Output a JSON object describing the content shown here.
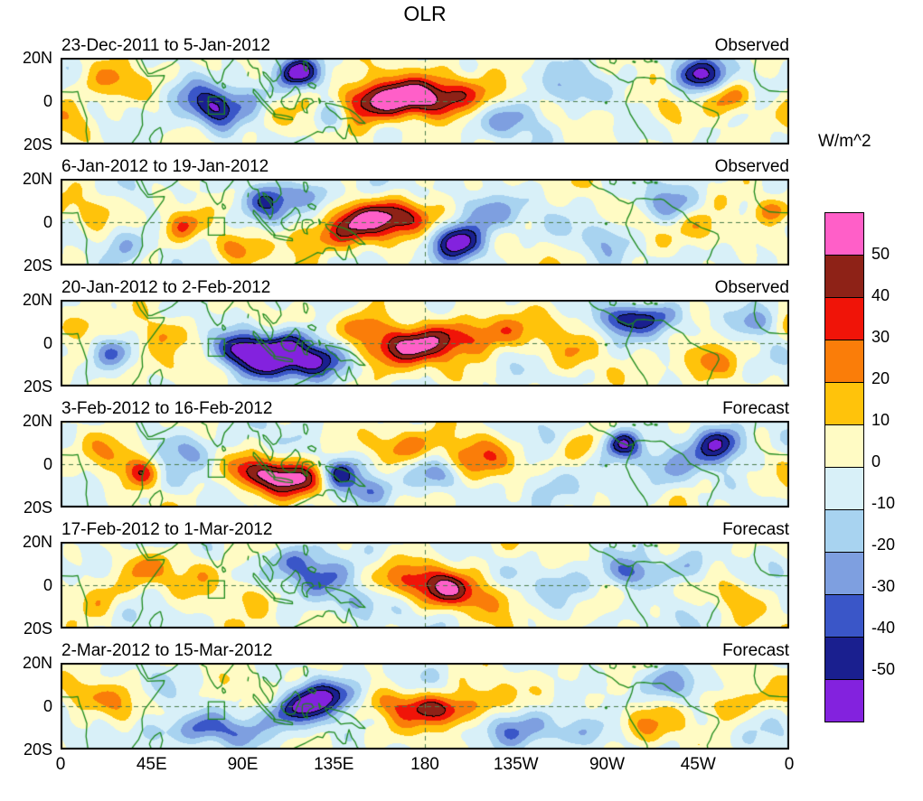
{
  "title": "OLR",
  "colorbar": {
    "units_label": "W/m^2",
    "tick_labels": [
      "50",
      "40",
      "30",
      "20",
      "10",
      "0",
      "-10",
      "-20",
      "-30",
      "-40",
      "-50"
    ],
    "levels": [
      -50,
      -40,
      -30,
      -20,
      -10,
      0,
      10,
      20,
      30,
      40,
      50
    ],
    "colors_top_to_bottom": [
      "#FF5FC8",
      "#8E2217",
      "#F01408",
      "#FA7D09",
      "#FFC30B",
      "#FFFBC4",
      "#D8F0F8",
      "#A8D3F0",
      "#7E9FE0",
      "#3A56C8",
      "#1A1F8F",
      "#8322DE"
    ]
  },
  "axes": {
    "x_tick_labels": [
      "0",
      "45E",
      "90E",
      "135E",
      "180",
      "135W",
      "90W",
      "45W",
      "0"
    ],
    "y_tick_labels": [
      "20N",
      "0",
      "20S"
    ],
    "lon_range": [
      0,
      360
    ],
    "lat_range": [
      -20,
      20
    ]
  },
  "chart_data": {
    "type": "filled_contour_map",
    "variable": "OLR anomaly",
    "units": "W/m^2",
    "contour_interval": 10,
    "panels": [
      {
        "label": "23-Dec-2011 to 5-Jan-2012",
        "tag": "Observed",
        "anomaly_centers": [
          {
            "lon": 172,
            "lat": 1,
            "value": 48,
            "rlon": 18,
            "rlat": 6
          },
          {
            "lon": 150,
            "lat": -3,
            "value": 30,
            "rlon": 14,
            "rlat": 7
          },
          {
            "lon": 200,
            "lat": 3,
            "value": 25,
            "rlon": 18,
            "rlat": 7
          },
          {
            "lon": 117,
            "lat": 13,
            "value": -52,
            "rlon": 7,
            "rlat": 5
          },
          {
            "lon": 78,
            "lat": -4,
            "value": -48,
            "rlon": 8,
            "rlat": 6
          },
          {
            "lon": 64,
            "lat": 4,
            "value": -25,
            "rlon": 8,
            "rlat": 6
          },
          {
            "lon": 133,
            "lat": -6,
            "value": -35,
            "rlon": 6,
            "rlat": 5
          },
          {
            "lon": 315,
            "lat": 12,
            "value": -55,
            "rlon": 10,
            "rlat": 6
          },
          {
            "lon": 330,
            "lat": 2,
            "value": 30,
            "rlon": 8,
            "rlat": 5
          },
          {
            "lon": 222,
            "lat": -8,
            "value": -30,
            "rlon": 12,
            "rlat": 6
          },
          {
            "lon": 250,
            "lat": 5,
            "value": -20,
            "rlon": 10,
            "rlat": 6
          },
          {
            "lon": 25,
            "lat": 8,
            "value": 20,
            "rlon": 10,
            "rlat": 6
          },
          {
            "lon": 5,
            "lat": -8,
            "value": 18,
            "rlon": 8,
            "rlat": 6
          },
          {
            "lon": 95,
            "lat": 2,
            "value": -20,
            "rlon": 6,
            "rlat": 5
          },
          {
            "lon": 300,
            "lat": -5,
            "value": 20,
            "rlon": 8,
            "rlat": 6
          }
        ]
      },
      {
        "label": "6-Jan-2012 to 19-Jan-2012",
        "tag": "Observed",
        "anomaly_centers": [
          {
            "lon": 163,
            "lat": 2,
            "value": 50,
            "rlon": 16,
            "rlat": 6
          },
          {
            "lon": 140,
            "lat": -4,
            "value": 30,
            "rlon": 10,
            "rlat": 6
          },
          {
            "lon": 120,
            "lat": -8,
            "value": 25,
            "rlon": 8,
            "rlat": 5
          },
          {
            "lon": 196,
            "lat": -9,
            "value": -55,
            "rlon": 9,
            "rlat": 6
          },
          {
            "lon": 210,
            "lat": 5,
            "value": -30,
            "rlon": 10,
            "rlat": 6
          },
          {
            "lon": 103,
            "lat": 10,
            "value": -35,
            "rlon": 9,
            "rlat": 6
          },
          {
            "lon": 125,
            "lat": 13,
            "value": -30,
            "rlon": 8,
            "rlat": 5
          },
          {
            "lon": 60,
            "lat": -2,
            "value": 28,
            "rlon": 6,
            "rlat": 5
          },
          {
            "lon": 30,
            "lat": -10,
            "value": -22,
            "rlon": 8,
            "rlat": 6
          },
          {
            "lon": 18,
            "lat": 5,
            "value": 15,
            "rlon": 8,
            "rlat": 6
          },
          {
            "lon": 300,
            "lat": 8,
            "value": -25,
            "rlon": 9,
            "rlat": 5
          },
          {
            "lon": 318,
            "lat": -3,
            "value": 18,
            "rlon": 8,
            "rlat": 6
          },
          {
            "lon": 352,
            "lat": 5,
            "value": 28,
            "rlon": 6,
            "rlat": 4
          },
          {
            "lon": 270,
            "lat": -8,
            "value": -18,
            "rlon": 9,
            "rlat": 6
          },
          {
            "lon": 85,
            "lat": -12,
            "value": 20,
            "rlon": 8,
            "rlat": 5
          }
        ]
      },
      {
        "label": "20-Jan-2012 to 2-Feb-2012",
        "tag": "Observed",
        "anomaly_centers": [
          {
            "lon": 102,
            "lat": -7,
            "value": -55,
            "rlon": 10,
            "rlat": 6
          },
          {
            "lon": 127,
            "lat": -8,
            "value": -58,
            "rlon": 10,
            "rlat": 6
          },
          {
            "lon": 88,
            "lat": -2,
            "value": -40,
            "rlon": 8,
            "rlat": 6
          },
          {
            "lon": 112,
            "lat": 2,
            "value": -35,
            "rlon": 8,
            "rlat": 5
          },
          {
            "lon": 168,
            "lat": -2,
            "value": 48,
            "rlon": 14,
            "rlat": 6
          },
          {
            "lon": 192,
            "lat": 2,
            "value": 30,
            "rlon": 14,
            "rlat": 6
          },
          {
            "lon": 215,
            "lat": 6,
            "value": 22,
            "rlon": 12,
            "rlat": 6
          },
          {
            "lon": 148,
            "lat": 8,
            "value": 25,
            "rlon": 10,
            "rlat": 5
          },
          {
            "lon": 50,
            "lat": 5,
            "value": 20,
            "rlon": 10,
            "rlat": 6
          },
          {
            "lon": 25,
            "lat": -5,
            "value": -25,
            "rlon": 7,
            "rlat": 5
          },
          {
            "lon": 10,
            "lat": 8,
            "value": 22,
            "rlon": 8,
            "rlat": 5
          },
          {
            "lon": 278,
            "lat": 11,
            "value": -40,
            "rlon": 8,
            "rlat": 5
          },
          {
            "lon": 295,
            "lat": 12,
            "value": -30,
            "rlon": 8,
            "rlat": 5
          },
          {
            "lon": 320,
            "lat": -8,
            "value": 20,
            "rlon": 9,
            "rlat": 6
          },
          {
            "lon": 345,
            "lat": 10,
            "value": -25,
            "rlon": 8,
            "rlat": 5
          },
          {
            "lon": 250,
            "lat": -5,
            "value": 15,
            "rlon": 12,
            "rlat": 7
          }
        ]
      },
      {
        "label": "3-Feb-2012 to 16-Feb-2012",
        "tag": "Forecast",
        "anomaly_centers": [
          {
            "lon": 115,
            "lat": -7,
            "value": 50,
            "rlon": 12,
            "rlat": 6
          },
          {
            "lon": 95,
            "lat": -3,
            "value": 30,
            "rlon": 8,
            "rlat": 5
          },
          {
            "lon": 138,
            "lat": -4,
            "value": -48,
            "rlon": 6,
            "rlat": 5
          },
          {
            "lon": 152,
            "lat": -12,
            "value": -30,
            "rlon": 8,
            "rlat": 5
          },
          {
            "lon": 40,
            "lat": -4,
            "value": 38,
            "rlon": 6,
            "rlat": 5
          },
          {
            "lon": 25,
            "lat": 5,
            "value": 20,
            "rlon": 8,
            "rlat": 6
          },
          {
            "lon": 60,
            "lat": 8,
            "value": -25,
            "rlon": 9,
            "rlat": 6
          },
          {
            "lon": 170,
            "lat": 8,
            "value": 25,
            "rlon": 10,
            "rlat": 5
          },
          {
            "lon": 205,
            "lat": 3,
            "value": 28,
            "rlon": 12,
            "rlat": 7
          },
          {
            "lon": 185,
            "lat": -5,
            "value": -20,
            "rlon": 8,
            "rlat": 5
          },
          {
            "lon": 278,
            "lat": 9,
            "value": -55,
            "rlon": 7,
            "rlat": 5
          },
          {
            "lon": 325,
            "lat": 9,
            "value": -50,
            "rlon": 9,
            "rlat": 6
          },
          {
            "lon": 300,
            "lat": 0,
            "value": -20,
            "rlon": 10,
            "rlat": 6
          },
          {
            "lon": 240,
            "lat": -10,
            "value": -22,
            "rlon": 10,
            "rlat": 6
          },
          {
            "lon": 255,
            "lat": 8,
            "value": 18,
            "rlon": 8,
            "rlat": 5
          }
        ]
      },
      {
        "label": "17-Feb-2012 to 1-Mar-2012",
        "tag": "Forecast",
        "anomaly_centers": [
          {
            "lon": 190,
            "lat": -2,
            "value": 40,
            "rlon": 10,
            "rlat": 6
          },
          {
            "lon": 170,
            "lat": 3,
            "value": 22,
            "rlon": 12,
            "rlat": 6
          },
          {
            "lon": 210,
            "lat": -5,
            "value": 20,
            "rlon": 10,
            "rlat": 6
          },
          {
            "lon": 128,
            "lat": 3,
            "value": -35,
            "rlon": 10,
            "rlat": 6
          },
          {
            "lon": 115,
            "lat": 12,
            "value": -28,
            "rlon": 9,
            "rlat": 5
          },
          {
            "lon": 145,
            "lat": -8,
            "value": -25,
            "rlon": 8,
            "rlat": 5
          },
          {
            "lon": 95,
            "lat": -5,
            "value": 20,
            "rlon": 8,
            "rlat": 5
          },
          {
            "lon": 70,
            "lat": 5,
            "value": 15,
            "rlon": 10,
            "rlat": 6
          },
          {
            "lon": 40,
            "lat": 8,
            "value": 18,
            "rlon": 8,
            "rlat": 5
          },
          {
            "lon": 20,
            "lat": -5,
            "value": 15,
            "rlon": 8,
            "rlat": 6
          },
          {
            "lon": 282,
            "lat": 6,
            "value": -35,
            "rlon": 8,
            "rlat": 5
          },
          {
            "lon": 310,
            "lat": 8,
            "value": -22,
            "rlon": 9,
            "rlat": 5
          },
          {
            "lon": 335,
            "lat": -5,
            "value": 15,
            "rlon": 8,
            "rlat": 6
          },
          {
            "lon": 250,
            "lat": 0,
            "value": -15,
            "rlon": 10,
            "rlat": 6
          }
        ]
      },
      {
        "label": "2-Mar-2012 to 15-Mar-2012",
        "tag": "Forecast",
        "anomaly_centers": [
          {
            "lon": 125,
            "lat": 2,
            "value": -55,
            "rlon": 8,
            "rlat": 6
          },
          {
            "lon": 110,
            "lat": -3,
            "value": -30,
            "rlon": 8,
            "rlat": 5
          },
          {
            "lon": 140,
            "lat": 6,
            "value": -28,
            "rlon": 8,
            "rlat": 5
          },
          {
            "lon": 186,
            "lat": -2,
            "value": 40,
            "rlon": 10,
            "rlat": 5
          },
          {
            "lon": 165,
            "lat": 2,
            "value": 25,
            "rlon": 10,
            "rlat": 5
          },
          {
            "lon": 205,
            "lat": 0,
            "value": 20,
            "rlon": 10,
            "rlat": 6
          },
          {
            "lon": 70,
            "lat": -10,
            "value": -28,
            "rlon": 10,
            "rlat": 5
          },
          {
            "lon": 45,
            "lat": -12,
            "value": -25,
            "rlon": 8,
            "rlat": 5
          },
          {
            "lon": 90,
            "lat": -12,
            "value": -20,
            "rlon": 8,
            "rlat": 5
          },
          {
            "lon": 30,
            "lat": 3,
            "value": 18,
            "rlon": 8,
            "rlat": 6
          },
          {
            "lon": 10,
            "lat": 5,
            "value": 20,
            "rlon": 7,
            "rlat": 5
          },
          {
            "lon": 225,
            "lat": -10,
            "value": -22,
            "rlon": 12,
            "rlat": 6
          },
          {
            "lon": 255,
            "lat": -12,
            "value": -18,
            "rlon": 10,
            "rlat": 5
          },
          {
            "lon": 300,
            "lat": 10,
            "value": -20,
            "rlon": 9,
            "rlat": 5
          },
          {
            "lon": 330,
            "lat": 0,
            "value": 25,
            "rlon": 7,
            "rlat": 5
          },
          {
            "lon": 290,
            "lat": -8,
            "value": 15,
            "rlon": 9,
            "rlat": 6
          }
        ]
      }
    ]
  }
}
